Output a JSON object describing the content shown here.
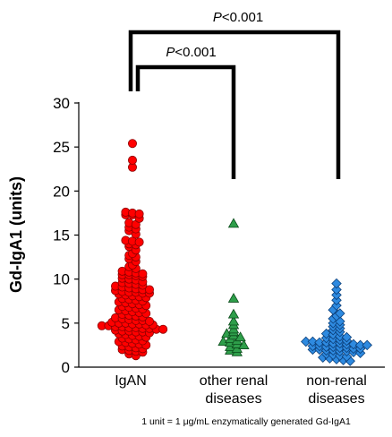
{
  "chart_data": {
    "type": "scatter",
    "ylabel": "Gd-IgA1 (units)",
    "ylim": [
      0,
      30
    ],
    "yticks": [
      0,
      5,
      10,
      15,
      20,
      25,
      30
    ],
    "categories": [
      "IgAN",
      "other renal diseases",
      "non-renal diseases"
    ],
    "category_lines": [
      [
        "IgAN"
      ],
      [
        "other renal",
        "diseases"
      ],
      [
        "non-renal",
        "diseases"
      ]
    ],
    "series": [
      {
        "category": "IgAN",
        "marker": "circle",
        "color": "#ff0000",
        "values": [
          25.4,
          23.5,
          22.7,
          17.6,
          17.5,
          17.4,
          17.3,
          17.3,
          16.9,
          16.4,
          16.2,
          15.9,
          15.7,
          15.5,
          15.1,
          14.4,
          14.3,
          14.2,
          14.0,
          13.9,
          13.7,
          13.3,
          12.9,
          12.7,
          12.5,
          12.3,
          12.0,
          11.6,
          11.4,
          11.2,
          10.9,
          10.8,
          10.7,
          10.6,
          10.5,
          10.5,
          10.4,
          10.3,
          10.1,
          10.0,
          9.9,
          9.7,
          9.6,
          9.5,
          9.4,
          9.3,
          9.2,
          9.1,
          9.0,
          8.9,
          8.8,
          8.8,
          8.7,
          8.6,
          8.5,
          8.5,
          8.4,
          8.4,
          8.3,
          8.2,
          8.1,
          8.0,
          7.9,
          7.8,
          7.7,
          7.6,
          7.5,
          7.4,
          7.3,
          7.2,
          7.1,
          7.0,
          6.9,
          6.8,
          6.7,
          6.6,
          6.5,
          6.4,
          6.3,
          6.2,
          6.1,
          6.0,
          5.9,
          5.8,
          5.7,
          5.6,
          5.5,
          5.4,
          5.3,
          5.3,
          5.2,
          5.1,
          5.0,
          5.0,
          4.9,
          4.9,
          4.8,
          4.8,
          4.7,
          4.7,
          4.6,
          4.6,
          4.5,
          4.5,
          4.4,
          4.4,
          4.3,
          4.3,
          4.2,
          4.1,
          4.1,
          4.0,
          4.0,
          3.9,
          3.8,
          3.7,
          3.6,
          3.5,
          3.4,
          3.3,
          3.2,
          3.1,
          3.0,
          2.9,
          2.8,
          2.7,
          2.6,
          2.5,
          2.4,
          2.3,
          2.2,
          2.1,
          2.0,
          1.9,
          1.8,
          1.7,
          1.5,
          1.3
        ]
      },
      {
        "category": "other renal diseases",
        "marker": "triangle",
        "color": "#2e9e4a",
        "values": [
          16.3,
          7.8,
          6.0,
          5.2,
          4.8,
          4.3,
          4.0,
          3.8,
          3.6,
          3.4,
          3.2,
          3.0,
          2.9,
          2.8,
          2.6,
          2.5,
          2.3,
          2.1,
          1.9,
          1.7
        ]
      },
      {
        "category": "non-renal diseases",
        "marker": "diamond",
        "color": "#2e8ae0",
        "values": [
          9.5,
          8.8,
          8.2,
          7.6,
          7.0,
          6.5,
          6.1,
          5.8,
          5.5,
          5.2,
          5.0,
          4.8,
          4.6,
          4.4,
          4.2,
          4.0,
          3.8,
          3.7,
          3.5,
          3.4,
          3.3,
          3.2,
          3.1,
          3.0,
          2.9,
          2.9,
          2.8,
          2.8,
          2.7,
          2.7,
          2.6,
          2.6,
          2.5,
          2.5,
          2.4,
          2.4,
          2.3,
          2.3,
          2.2,
          2.2,
          2.1,
          2.1,
          2.0,
          2.0,
          1.9,
          1.9,
          1.8,
          1.8,
          1.7,
          1.6,
          1.5,
          1.4,
          1.3,
          1.2,
          1.1,
          1.0,
          0.9,
          0.8,
          0.7
        ]
      }
    ],
    "comparisons": [
      {
        "from": "IgAN",
        "to": "other renal diseases",
        "label": "<0.001"
      },
      {
        "from": "IgAN",
        "to": "non-renal diseases",
        "label": "<0.001"
      }
    ],
    "pval_prefix": "P"
  },
  "footnote": "1 unit  = 1 μg/mL enzymatically generated Gd-IgA1"
}
